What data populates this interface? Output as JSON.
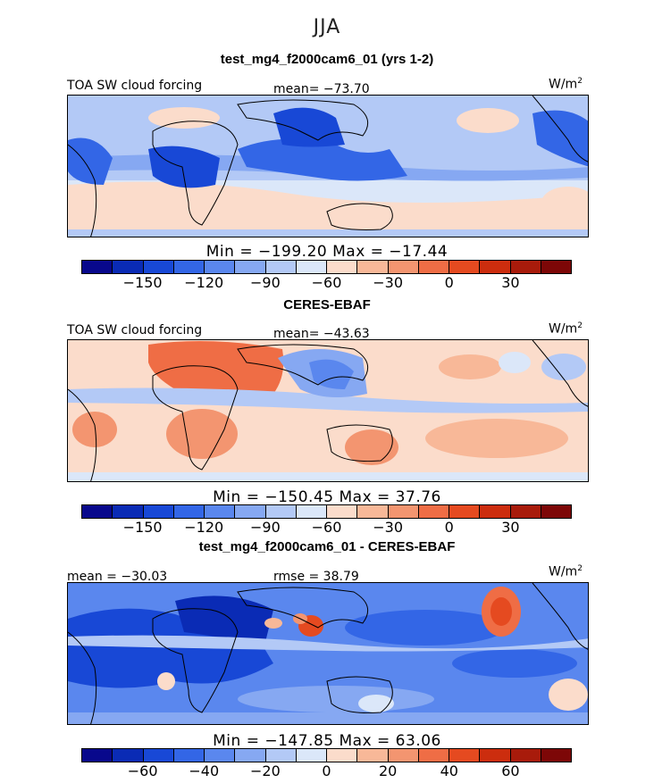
{
  "season": "JJA",
  "units_label": "W/m",
  "units_exp": "2",
  "colorbar_colors": [
    "#08088c",
    "#0a2bb5",
    "#1848d6",
    "#3366e6",
    "#5a87ee",
    "#86a8f2",
    "#b3c9f6",
    "#dbe7f9",
    "#fbdccb",
    "#f8b898",
    "#f39570",
    "#ef6d45",
    "#e54a20",
    "#cc2d0e",
    "#a81b0b",
    "#7d0707"
  ],
  "panels": [
    {
      "title": "test_mg4_f2000cam6_01 (yrs 1-2)",
      "variable": "TOA SW cloud forcing",
      "mean_text": "mean= −73.70",
      "minmax_text": "Min = −199.20 Max = −17.44",
      "tick_labels": [
        "−150",
        "−120",
        "−90",
        "−60",
        "−30",
        "0",
        "30"
      ]
    },
    {
      "title": "CERES-EBAF",
      "variable": "TOA SW cloud forcing",
      "mean_text": "mean= −43.63",
      "minmax_text": "Min = −150.45 Max =  37.76",
      "tick_labels": [
        "−150",
        "−120",
        "−90",
        "−60",
        "−30",
        "0",
        "30"
      ]
    },
    {
      "title": "test_mg4_f2000cam6_01 - CERES-EBAF",
      "mean_text": "mean = −30.03",
      "rmse_text": "rmse =  38.79",
      "minmax_text": "Min = −147.85 Max =  63.06",
      "tick_labels": [
        "−60",
        "−40",
        "−20",
        "0",
        "20",
        "40",
        "60"
      ]
    }
  ],
  "chart_data": [
    {
      "type": "heatmap",
      "title": "test_mg4_f2000cam6_01 (yrs 1-2)",
      "variable": "TOA SW cloud forcing",
      "units": "W/m2",
      "mean": -73.7,
      "min": -199.2,
      "max": -17.44,
      "contour_levels": [
        -150,
        -120,
        -90,
        -60,
        -30,
        0,
        30
      ],
      "tick_step": 30
    },
    {
      "type": "heatmap",
      "title": "CERES-EBAF",
      "variable": "TOA SW cloud forcing",
      "units": "W/m2",
      "mean": -43.63,
      "min": -150.45,
      "max": 37.76,
      "contour_levels": [
        -150,
        -120,
        -90,
        -60,
        -30,
        0,
        30
      ]
    },
    {
      "type": "heatmap",
      "title": "test_mg4_f2000cam6_01 - CERES-EBAF",
      "units": "W/m2",
      "mean": -30.03,
      "rmse": 38.79,
      "min": -147.85,
      "max": 63.06,
      "contour_levels": [
        -60,
        -40,
        -20,
        0,
        20,
        40,
        60
      ]
    }
  ]
}
